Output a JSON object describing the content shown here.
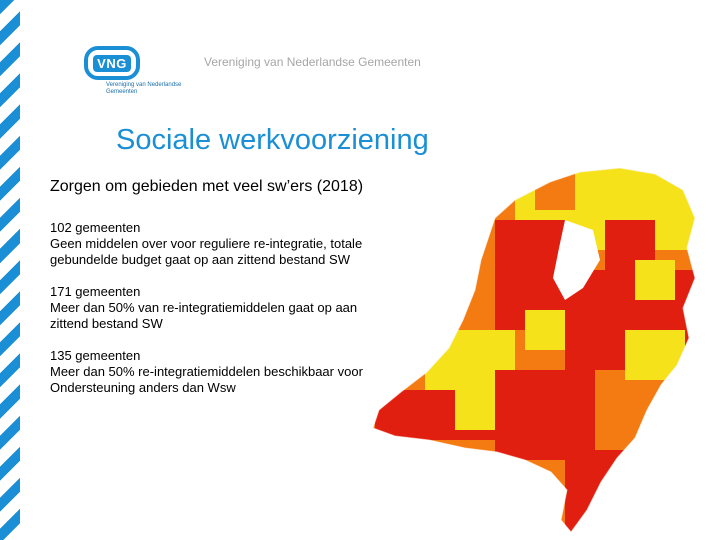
{
  "header": {
    "org_name": "Vereniging van Nederlandse Gemeenten"
  },
  "logo": {
    "badge": "VNG",
    "tagline": "Vereniging van Nederlandse Gemeenten"
  },
  "title": "Sociale werkvoorziening",
  "subtitle": "Zorgen om gebieden met veel sw’ers (2018)",
  "blocks": [
    {
      "heading": "102 gemeenten",
      "body": "Geen middelen over voor reguliere re-integratie, totale gebundelde budget gaat op aan zittend bestand SW"
    },
    {
      "heading": "171 gemeenten",
      "body": "Meer dan 50% van re-integratiemiddelen gaat op aan zittend bestand SW"
    },
    {
      "heading": "135 gemeenten",
      "body": "Meer dan 50% re-integratiemiddelen beschikbaar voor Ondersteuning anders dan Wsw"
    }
  ],
  "colors": {
    "accent": "#1b8fd6",
    "red": "#e01f10",
    "orange": "#f47a12",
    "yellow": "#f5e21b"
  }
}
